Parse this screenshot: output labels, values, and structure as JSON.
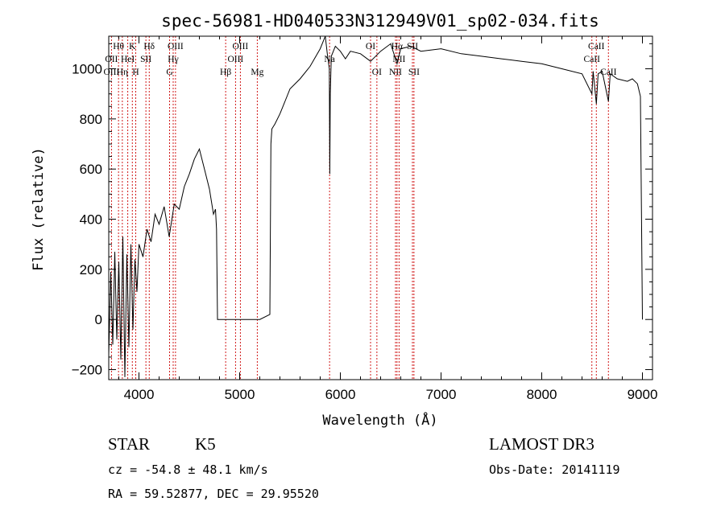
{
  "chart_data": {
    "type": "line",
    "title": "spec-56981-HD040533N312949V01_sp02-034.fits",
    "xlabel": "Wavelength (Å)",
    "ylabel": "Flux (relative)",
    "xlim": [
      3700,
      9100
    ],
    "ylim": [
      -240,
      1130
    ],
    "xticks": [
      4000,
      5000,
      6000,
      7000,
      8000,
      9000
    ],
    "yticks": [
      -200,
      0,
      200,
      400,
      600,
      800,
      1000
    ],
    "grid": false,
    "series": [
      {
        "x": [
          3700,
          3720,
          3740,
          3760,
          3780,
          3800,
          3820,
          3840,
          3860,
          3880,
          3900,
          3920,
          3940,
          3960,
          3980,
          4000,
          4040,
          4080,
          4120,
          4160,
          4200,
          4250,
          4300,
          4350,
          4400,
          4450,
          4500,
          4550,
          4600,
          4650,
          4700,
          4740,
          4760,
          4770,
          4780,
          5000,
          5200,
          5300,
          5310,
          5320,
          5350,
          5400,
          5450,
          5500,
          5600,
          5700,
          5800,
          5850,
          5870,
          5890,
          5895,
          5900,
          5910,
          5950,
          6000,
          6050,
          6100,
          6200,
          6300,
          6400,
          6500,
          6563,
          6600,
          6700,
          6800,
          7000,
          7200,
          7400,
          7600,
          7800,
          8000,
          8200,
          8400,
          8498,
          8510,
          8542,
          8560,
          8600,
          8662,
          8680,
          8750,
          8850,
          8900,
          8950,
          8980,
          9000
        ],
        "values": [
          -140,
          190,
          -100,
          270,
          -80,
          230,
          -160,
          330,
          -230,
          260,
          -110,
          300,
          -40,
          240,
          110,
          300,
          250,
          360,
          310,
          420,
          380,
          450,
          330,
          460,
          440,
          530,
          580,
          640,
          680,
          600,
          520,
          420,
          440,
          360,
          0,
          0,
          0,
          20,
          700,
          760,
          780,
          820,
          870,
          920,
          960,
          1010,
          1080,
          1130,
          1060,
          1000,
          580,
          900,
          1050,
          1090,
          1070,
          1040,
          1070,
          1060,
          1030,
          1070,
          1100,
          1020,
          1080,
          1090,
          1070,
          1080,
          1060,
          1050,
          1040,
          1030,
          1020,
          1000,
          980,
          900,
          990,
          860,
          980,
          990,
          870,
          980,
          960,
          950,
          960,
          940,
          890,
          0
        ]
      }
    ],
    "line_labels": [
      {
        "text": "Hθ",
        "row": 0,
        "x": 3797
      },
      {
        "text": "K",
        "row": 0,
        "x": 3934
      },
      {
        "text": "Hδ",
        "row": 0,
        "x": 4102
      },
      {
        "text": "OIII",
        "row": 0,
        "x": 4363
      },
      {
        "text": "OIII",
        "row": 0,
        "x": 5007
      },
      {
        "text": "OI",
        "row": 0,
        "x": 6300
      },
      {
        "text": "Hα",
        "row": 0,
        "x": 6563
      },
      {
        "text": "SII",
        "row": 0,
        "x": 6716
      },
      {
        "text": "CaII",
        "row": 0,
        "x": 8542
      },
      {
        "text": "OII",
        "row": 1,
        "x": 3727
      },
      {
        "text": "HeI",
        "row": 1,
        "x": 3889
      },
      {
        "text": "SII",
        "row": 1,
        "x": 4069
      },
      {
        "text": "Hγ",
        "row": 1,
        "x": 4340
      },
      {
        "text": "OIII",
        "row": 1,
        "x": 4959
      },
      {
        "text": "Na",
        "row": 1,
        "x": 5893
      },
      {
        "text": "NII",
        "row": 1,
        "x": 6583
      },
      {
        "text": "CaII",
        "row": 1,
        "x": 8498
      },
      {
        "text": "OIII",
        "row": 2,
        "x": 3727
      },
      {
        "text": "Hη",
        "row": 2,
        "x": 3835
      },
      {
        "text": "H",
        "row": 2,
        "x": 3968
      },
      {
        "text": "G",
        "row": 2,
        "x": 4304
      },
      {
        "text": "Hβ",
        "row": 2,
        "x": 4861
      },
      {
        "text": "Mg",
        "row": 2,
        "x": 5175
      },
      {
        "text": "OI",
        "row": 2,
        "x": 6363
      },
      {
        "text": "NII",
        "row": 2,
        "x": 6548
      },
      {
        "text": "SII",
        "row": 2,
        "x": 6731
      },
      {
        "text": "CaII",
        "row": 2,
        "x": 8662
      }
    ],
    "marker_lines": [
      3727,
      3797,
      3835,
      3889,
      3934,
      3968,
      4069,
      4102,
      4304,
      4340,
      4363,
      4861,
      4959,
      5007,
      5175,
      5893,
      6300,
      6363,
      6548,
      6563,
      6583,
      6716,
      6731,
      8498,
      8542,
      8662
    ]
  },
  "info": {
    "object_type": "STAR",
    "subclass": "K5",
    "survey": "LAMOST DR3",
    "redshift": "cz = -54.8 ± 48.1 km/s",
    "obs_date": "Obs-Date: 20141119",
    "coords": "RA =  59.52877, DEC =  29.95520"
  },
  "colors": {
    "spectrum": "#000000",
    "marker_lines": "#cc0000",
    "axes": "#000000"
  }
}
